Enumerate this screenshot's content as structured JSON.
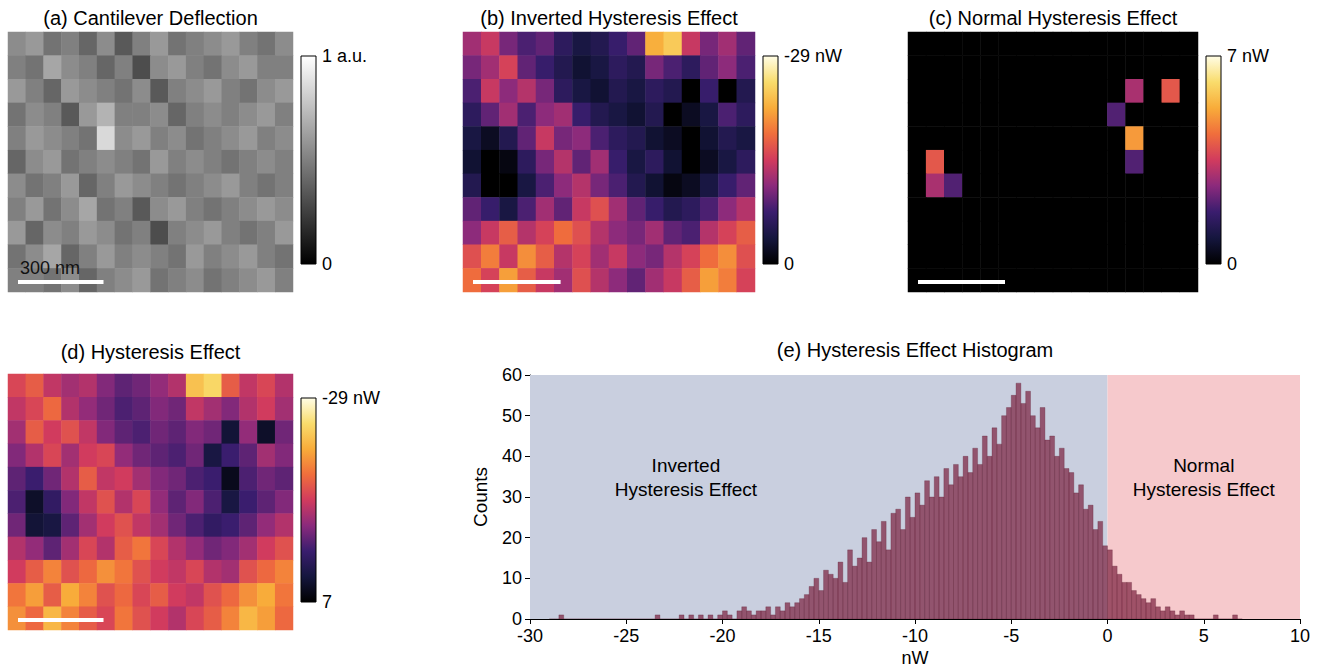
{
  "chart_data": [
    {
      "type": "heatmap",
      "title": "(a) Cantilever Deflection",
      "color": "gray",
      "tick_labels": false,
      "annotations": [
        "300 nm"
      ],
      "colorbar_range": [
        1,
        0
      ],
      "colorbar_ticks": [
        {
          "value": 1,
          "label": "1 a.u."
        },
        0
      ],
      "cells": [
        [
          0.55,
          0.6,
          0.45,
          0.5,
          0.4,
          0.55,
          0.35,
          0.5,
          0.6,
          0.45,
          0.5,
          0.55,
          0.6,
          0.5,
          0.45,
          0.55
        ],
        [
          0.5,
          0.45,
          0.65,
          0.55,
          0.5,
          0.4,
          0.5,
          0.3,
          0.55,
          0.6,
          0.5,
          0.45,
          0.55,
          0.6,
          0.5,
          0.5
        ],
        [
          0.6,
          0.5,
          0.4,
          0.6,
          0.55,
          0.5,
          0.45,
          0.55,
          0.35,
          0.5,
          0.55,
          0.6,
          0.5,
          0.45,
          0.55,
          0.6
        ],
        [
          0.45,
          0.55,
          0.5,
          0.35,
          0.6,
          0.7,
          0.5,
          0.5,
          0.55,
          0.4,
          0.5,
          0.55,
          0.5,
          0.55,
          0.6,
          0.5
        ],
        [
          0.5,
          0.6,
          0.55,
          0.5,
          0.45,
          0.85,
          0.55,
          0.6,
          0.5,
          0.55,
          0.45,
          0.5,
          0.55,
          0.6,
          0.5,
          0.55
        ],
        [
          0.4,
          0.55,
          0.6,
          0.45,
          0.5,
          0.55,
          0.5,
          0.45,
          0.6,
          0.5,
          0.55,
          0.5,
          0.45,
          0.5,
          0.55,
          0.5
        ],
        [
          0.55,
          0.45,
          0.5,
          0.6,
          0.4,
          0.5,
          0.6,
          0.55,
          0.5,
          0.45,
          0.5,
          0.55,
          0.6,
          0.5,
          0.45,
          0.5
        ],
        [
          0.5,
          0.6,
          0.45,
          0.55,
          0.65,
          0.45,
          0.5,
          0.35,
          0.55,
          0.6,
          0.5,
          0.45,
          0.5,
          0.55,
          0.6,
          0.55
        ],
        [
          0.6,
          0.4,
          0.55,
          0.5,
          0.6,
          0.55,
          0.45,
          0.5,
          0.3,
          0.5,
          0.55,
          0.6,
          0.5,
          0.45,
          0.5,
          0.6
        ],
        [
          0.45,
          0.55,
          0.65,
          0.4,
          0.5,
          0.6,
          0.5,
          0.55,
          0.5,
          0.45,
          0.6,
          0.5,
          0.55,
          0.6,
          0.5,
          0.45
        ],
        [
          0.5,
          0.5,
          0.45,
          0.55,
          0.4,
          0.5,
          0.55,
          0.6,
          0.45,
          0.5,
          0.55,
          0.45,
          0.5,
          0.55,
          0.6,
          0.5
        ]
      ]
    },
    {
      "type": "heatmap",
      "title": "(b) Inverted Hysteresis Effect",
      "color": "hot",
      "tick_labels": false,
      "colorbar_range": [
        -29,
        0
      ],
      "colorbar_ticks": [
        {
          "value": -29,
          "label": "-29 nW"
        },
        0
      ],
      "cells": [
        [
          -12,
          -14,
          -10,
          -8,
          -9,
          -6,
          -4,
          -5,
          -7,
          -9,
          -22,
          -24,
          -14,
          -10,
          -12,
          -9
        ],
        [
          -10,
          -12,
          -15,
          -9,
          -7,
          -5,
          -3,
          -4,
          -6,
          -5,
          -10,
          -8,
          -6,
          -9,
          -11,
          -8
        ],
        [
          -8,
          -14,
          -11,
          -13,
          -10,
          -6,
          -4,
          -3,
          -5,
          -4,
          -6,
          -5,
          0,
          -7,
          0,
          -5
        ],
        [
          -6,
          -9,
          -12,
          -8,
          -11,
          -12,
          -7,
          -5,
          -4,
          -3,
          -5,
          0,
          -2,
          -4,
          -8,
          -6
        ],
        [
          -4,
          -2,
          -5,
          -9,
          -14,
          -10,
          -11,
          -8,
          -6,
          -5,
          -3,
          -2,
          0,
          -3,
          -5,
          -4
        ],
        [
          -3,
          0,
          -1,
          -6,
          -10,
          -13,
          -9,
          -12,
          -7,
          -4,
          -6,
          -3,
          0,
          -2,
          -4,
          -6
        ],
        [
          -5,
          0,
          0,
          -4,
          -8,
          -11,
          -13,
          -10,
          -8,
          -5,
          -3,
          -1,
          -2,
          -4,
          -7,
          -9
        ],
        [
          -9,
          -7,
          -4,
          -8,
          -12,
          -9,
          -14,
          -16,
          -12,
          -9,
          -7,
          -5,
          -6,
          -8,
          -11,
          -13
        ],
        [
          -11,
          -14,
          -17,
          -13,
          -15,
          -18,
          -16,
          -13,
          -11,
          -10,
          -12,
          -9,
          -8,
          -13,
          -15,
          -17
        ],
        [
          -16,
          -19,
          -14,
          -20,
          -17,
          -13,
          -15,
          -12,
          -14,
          -11,
          -10,
          -13,
          -15,
          -18,
          -20,
          -16
        ],
        [
          -18,
          -15,
          -21,
          -17,
          -14,
          -12,
          -16,
          -13,
          -11,
          -9,
          -12,
          -14,
          -17,
          -21,
          -19,
          -15
        ]
      ]
    },
    {
      "type": "heatmap",
      "title": "(c) Normal Hysteresis Effect",
      "color": "hot",
      "tick_labels": false,
      "colorbar_range": [
        7,
        0
      ],
      "colorbar_ticks": [
        {
          "value": 7,
          "label": "7 nW"
        },
        0
      ],
      "cells": [
        [
          0,
          0,
          0,
          0,
          0,
          0,
          0,
          0,
          0,
          0,
          0,
          0,
          0,
          0,
          0,
          0
        ],
        [
          0,
          0,
          0,
          0,
          0,
          0,
          0,
          0,
          0,
          0,
          0,
          0,
          0,
          0,
          0,
          0
        ],
        [
          0,
          0,
          0,
          0,
          0,
          0,
          0,
          0,
          0,
          0,
          0,
          0,
          3,
          0,
          4,
          0
        ],
        [
          0,
          0,
          0,
          0,
          0,
          0,
          0,
          0,
          0,
          0,
          0,
          2,
          0,
          0,
          0,
          0
        ],
        [
          0,
          0,
          0,
          0,
          0,
          0,
          0,
          0,
          0,
          0,
          0,
          0,
          5,
          0,
          0,
          0
        ],
        [
          0,
          4,
          0,
          0,
          0,
          0,
          0,
          0,
          0,
          0,
          0,
          0,
          2,
          0,
          0,
          0
        ],
        [
          0,
          3,
          2,
          0,
          0,
          0,
          0,
          0,
          0,
          0,
          0,
          0,
          0,
          0,
          0,
          0
        ],
        [
          0,
          0,
          0,
          0,
          0,
          0,
          0,
          0,
          0,
          0,
          0,
          0,
          0,
          0,
          0,
          0
        ],
        [
          0,
          0,
          0,
          0,
          0,
          0,
          0,
          0,
          0,
          0,
          0,
          0,
          0,
          0,
          0,
          0
        ],
        [
          0,
          0,
          0,
          0,
          0,
          0,
          0,
          0,
          0,
          0,
          0,
          0,
          0,
          0,
          0,
          0
        ],
        [
          0,
          0,
          0,
          0,
          0,
          0,
          0,
          0,
          0,
          0,
          0,
          0,
          0,
          0,
          0,
          0
        ]
      ]
    },
    {
      "type": "heatmap",
      "title": "(d) Hysteresis Effect",
      "color": "hot",
      "tick_labels": false,
      "colorbar_range": [
        -29,
        7
      ],
      "colorbar_ticks": [
        {
          "value": -29,
          "label": "-29 nW"
        },
        7
      ],
      "cells": [
        [
          -12,
          -14,
          -10,
          -8,
          -9,
          -6,
          -4,
          -5,
          -7,
          -9,
          -22,
          -24,
          -14,
          -10,
          -12,
          -9
        ],
        [
          -10,
          -12,
          -15,
          -9,
          -7,
          -5,
          -3,
          -4,
          -6,
          -5,
          -10,
          -8,
          -6,
          -9,
          -11,
          -8
        ],
        [
          -8,
          -14,
          -11,
          -13,
          -10,
          -6,
          -4,
          -3,
          -5,
          -4,
          -6,
          -5,
          3,
          -7,
          4,
          -5
        ],
        [
          -6,
          -9,
          -12,
          -8,
          -11,
          -12,
          -7,
          -5,
          -4,
          -3,
          -5,
          2,
          -2,
          -4,
          -8,
          -6
        ],
        [
          -4,
          -2,
          -5,
          -9,
          -14,
          -10,
          -11,
          -8,
          -6,
          -5,
          -3,
          -2,
          5,
          -3,
          -5,
          -4
        ],
        [
          -3,
          4,
          -1,
          -6,
          -10,
          -13,
          -9,
          -12,
          -7,
          -4,
          -6,
          -3,
          2,
          -2,
          -4,
          -6
        ],
        [
          -5,
          3,
          2,
          -4,
          -8,
          -11,
          -13,
          -10,
          -8,
          -5,
          -3,
          -1,
          -2,
          -4,
          -7,
          -9
        ],
        [
          -9,
          -7,
          -4,
          -8,
          -12,
          -9,
          -14,
          -16,
          -12,
          -9,
          -7,
          -5,
          -6,
          -8,
          -11,
          -13
        ],
        [
          -11,
          -14,
          -17,
          -13,
          -15,
          -18,
          -16,
          -13,
          -11,
          -10,
          -12,
          -9,
          -8,
          -13,
          -15,
          -17
        ],
        [
          -16,
          -19,
          -14,
          -20,
          -17,
          -13,
          -15,
          -12,
          -14,
          -11,
          -10,
          -13,
          -15,
          -18,
          -20,
          -16
        ],
        [
          -18,
          -15,
          -21,
          -17,
          -14,
          -12,
          -16,
          -13,
          -11,
          -9,
          -12,
          -14,
          -17,
          -21,
          -19,
          -15
        ]
      ]
    },
    {
      "type": "histogram",
      "title": "(e) Hysteresis Effect Histogram",
      "xlabel": "nW",
      "ylabel": "Counts",
      "color": "#7a1f3d",
      "grid": false,
      "xlim": [
        -30,
        10
      ],
      "xticks": [
        -30,
        -25,
        -20,
        -15,
        -10,
        -5,
        0,
        5,
        10
      ],
      "ylim": [
        0,
        60
      ],
      "yticks": [
        0,
        10,
        20,
        30,
        40,
        50,
        60
      ],
      "annotations": [
        {
          "text": "Inverted Hysteresis Effect",
          "x_range": [
            -30,
            0
          ],
          "color": "#c9cfdf"
        },
        {
          "text": "Normal Hysteresis Effect",
          "x_range": [
            0,
            10
          ],
          "color": "#f6c9cc"
        }
      ],
      "bins": [
        -29,
        -28.75,
        -28.5,
        -28.25,
        -28,
        -27.75,
        -27.5,
        -27.25,
        -27,
        -26.75,
        -26.5,
        -26.25,
        -26,
        -25.75,
        -25.5,
        -25.25,
        -25,
        -24.75,
        -24.5,
        -24.25,
        -24,
        -23.75,
        -23.5,
        -23.25,
        -23,
        -22.75,
        -22.5,
        -22.25,
        -22,
        -21.75,
        -21.5,
        -21.25,
        -21,
        -20.75,
        -20.5,
        -20.25,
        -20,
        -19.75,
        -19.5,
        -19.25,
        -19,
        -18.75,
        -18.5,
        -18.25,
        -18,
        -17.75,
        -17.5,
        -17.25,
        -17,
        -16.75,
        -16.5,
        -16.25,
        -16,
        -15.75,
        -15.5,
        -15.25,
        -15,
        -14.75,
        -14.5,
        -14.25,
        -14,
        -13.75,
        -13.5,
        -13.25,
        -13,
        -12.75,
        -12.5,
        -12.25,
        -12,
        -11.75,
        -11.5,
        -11.25,
        -11,
        -10.75,
        -10.5,
        -10.25,
        -10,
        -9.75,
        -9.5,
        -9.25,
        -9,
        -8.75,
        -8.5,
        -8.25,
        -8,
        -7.75,
        -7.5,
        -7.25,
        -7,
        -6.75,
        -6.5,
        -6.25,
        -6,
        -5.75,
        -5.5,
        -5.25,
        -5,
        -4.75,
        -4.5,
        -4.25,
        -4,
        -3.75,
        -3.5,
        -3.25,
        -3,
        -2.75,
        -2.5,
        -2.25,
        -2,
        -1.75,
        -1.5,
        -1.25,
        -1,
        -0.75,
        -0.5,
        -0.25,
        0,
        0.25,
        0.5,
        0.75,
        1,
        1.25,
        1.5,
        1.75,
        2,
        2.25,
        2.5,
        2.75,
        3,
        3.25,
        3.5,
        3.75,
        4,
        4.25,
        4.5,
        4.75,
        5,
        5.25,
        5.5,
        5.75,
        6,
        6.25,
        6.5,
        6.75,
        7
      ],
      "values": [
        0,
        0,
        1,
        0,
        0,
        0,
        0,
        0,
        0,
        0,
        0,
        0,
        0,
        0,
        0,
        0,
        0,
        0,
        0,
        0,
        0,
        0,
        1,
        0,
        0,
        0,
        0,
        1,
        0,
        1,
        0,
        1,
        0,
        1,
        0,
        1,
        2,
        1,
        0,
        2,
        3,
        2,
        1,
        2,
        2,
        3,
        1,
        3,
        2,
        4,
        3,
        4,
        5,
        6,
        8,
        10,
        7,
        12,
        11,
        10,
        14,
        9,
        17,
        13,
        15,
        20,
        14,
        22,
        19,
        24,
        17,
        26,
        27,
        22,
        30,
        25,
        31,
        28,
        34,
        30,
        35,
        30,
        37,
        33,
        38,
        35,
        40,
        36,
        42,
        38,
        45,
        40,
        47,
        43,
        50,
        52,
        55,
        58,
        53,
        56,
        50,
        47,
        52,
        44,
        45,
        40,
        42,
        37,
        36,
        31,
        33,
        27,
        28,
        22,
        24,
        18,
        17,
        13,
        11,
        9,
        9,
        7,
        6,
        5,
        4,
        5,
        3,
        2,
        3,
        2,
        1,
        2,
        1,
        1,
        0,
        0,
        0,
        0,
        1,
        0,
        0,
        0,
        1,
        0
      ]
    }
  ]
}
